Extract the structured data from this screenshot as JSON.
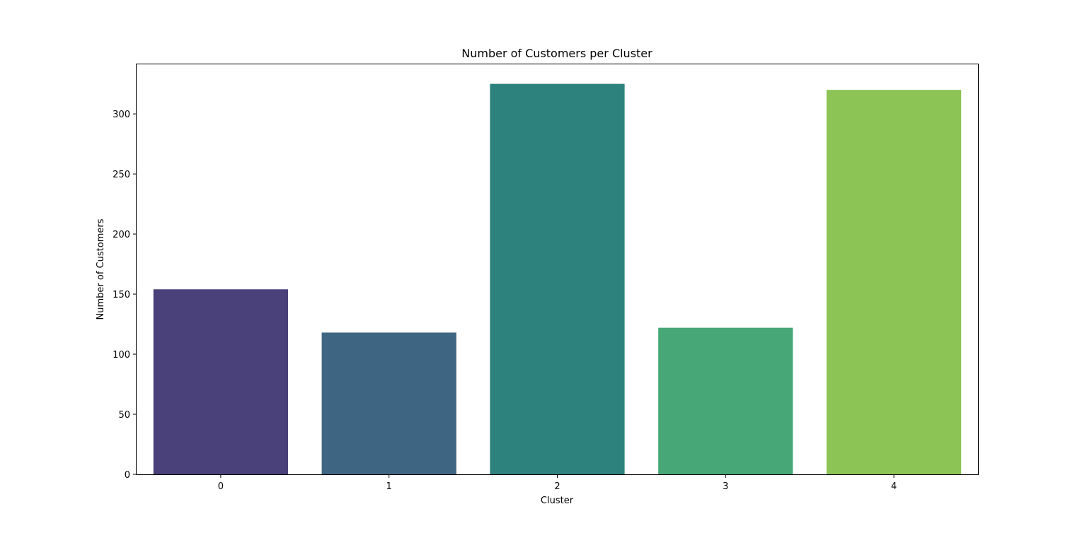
{
  "chart_data": {
    "type": "bar",
    "title": "Number of Customers per Cluster",
    "xlabel": "Cluster",
    "ylabel": "Number of Customers",
    "categories": [
      "0",
      "1",
      "2",
      "3",
      "4"
    ],
    "values": [
      154,
      118,
      325,
      122,
      320
    ],
    "colors": [
      "#4a417a",
      "#3e6682",
      "#2e827d",
      "#47a777",
      "#8dc456"
    ],
    "ylim": [
      0,
      341.25
    ],
    "yticks": [
      0,
      50,
      100,
      150,
      200,
      250,
      300
    ],
    "grid": false,
    "legend": "none"
  }
}
